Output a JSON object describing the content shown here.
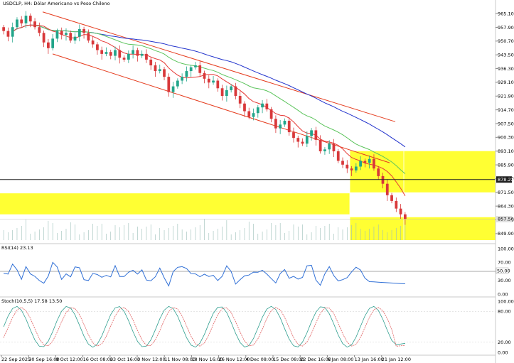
{
  "header": {
    "symbol_label": "USDCLP, H4: Dólar Americano vs Peso Chileno",
    "indicator_rsi": "RSI(14) 23.13",
    "indicator_stoch": "Stoch(10,5,5) 17.58 13.50"
  },
  "colors": {
    "bull_candle": "#22a58a",
    "bear_candle": "#d8383a",
    "ma_fast": "#e53935",
    "ma_mid": "#5cc45c",
    "ma_slow": "#2233cc",
    "channel": "#e53d1f",
    "zone": "#ffff33",
    "rsi_line": "#2f6fd6",
    "stoch_main": "#2f9e8f",
    "stoch_signal": "#e06060",
    "hline": "#222222"
  },
  "price_axis": {
    "ticks": [
      "965.10",
      "957.90",
      "950.70",
      "943.50",
      "936.30",
      "929.10",
      "921.90",
      "914.70",
      "907.50",
      "900.30",
      "893.10",
      "885.90",
      "878.70",
      "871.50",
      "864.30",
      "857.10",
      "849.90"
    ],
    "hline_label": "878.22",
    "current_label": "857.50"
  },
  "rsi_axis": {
    "ticks": [
      "100.00",
      "70.00",
      "30.00",
      "0.00"
    ],
    "level_label": "50.00"
  },
  "stoch_axis": {
    "ticks": [
      "100.00",
      "80.00",
      "20.00",
      "0.00"
    ]
  },
  "time_axis": {
    "labels": [
      "22 Sep 2025",
      "30 Sep 16:00",
      "8 Oct 12:00",
      "16 Oct 08:00",
      "23 Oct 16:00",
      "3 Nov 12:00",
      "11 Nov 08:00",
      "18 Nov 16:00",
      "26 Nov 12:00",
      "4 Dec 08:00",
      "15 Dec 08:00",
      "22 Dec 16:00",
      "6 Jan 08:00",
      "13 Jan 16:00",
      "21 Jan 12:00"
    ]
  },
  "chart_data": {
    "type": "candlestick",
    "symbol": "USDCLP",
    "timeframe": "H4",
    "price_range": [
      846.5,
      968.5
    ],
    "closes": [
      956,
      953,
      958,
      962,
      960,
      964,
      961,
      958,
      955,
      950,
      947,
      952,
      956,
      954,
      955,
      951,
      953,
      957,
      955,
      951,
      949,
      946,
      944,
      945,
      943,
      946,
      942,
      941,
      944,
      946,
      943,
      944,
      941,
      938,
      935,
      936,
      932,
      924,
      927,
      930,
      932,
      935,
      937,
      938,
      934,
      931,
      929,
      930,
      926,
      922,
      925,
      927,
      922,
      918,
      914,
      911,
      913,
      916,
      918,
      915,
      910,
      905,
      907,
      909,
      903,
      900,
      898,
      897,
      901,
      904,
      899,
      893,
      894,
      897,
      893,
      888,
      886,
      884,
      883,
      885,
      888,
      887,
      889,
      884,
      880,
      876,
      870,
      867,
      863,
      860,
      857.5
    ],
    "key_level": 878.22,
    "current_price": 857.5,
    "zones": [
      [
        871.5,
        893.1
      ],
      [
        860.0,
        871.0
      ],
      [
        846.5,
        858.5
      ]
    ],
    "rsi": {
      "period": 14,
      "value": 23.13,
      "levels": [
        30,
        50,
        70
      ]
    },
    "stochastic": {
      "params": [
        10,
        5,
        5
      ],
      "main": 17.58,
      "signal": 13.5,
      "levels": [
        20,
        80
      ]
    }
  }
}
